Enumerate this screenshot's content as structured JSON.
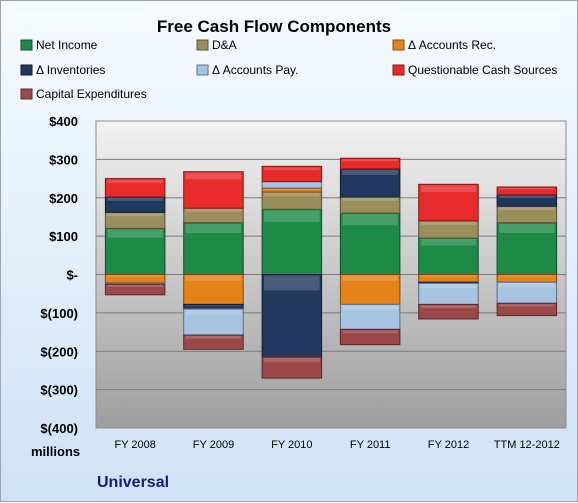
{
  "chart_data": {
    "type": "bar",
    "stacked": true,
    "title": "Free Cash Flow Components",
    "unit_label": "millions",
    "company": "Universal",
    "categories": [
      "FY 2008",
      "FY 2009",
      "FY 2010",
      "FY 2011",
      "FY 2012",
      "TTM 12-2012"
    ],
    "ylim": [
      -400,
      400
    ],
    "yticks": [
      400,
      300,
      200,
      100,
      0,
      -100,
      -200,
      -300,
      -400
    ],
    "ytick_labels": [
      "$400",
      "$300",
      "$200",
      "$100",
      "$-",
      "$(100)",
      "$(200)",
      "$(300)",
      "$(400)"
    ],
    "grid": true,
    "legend_position": "top",
    "series": [
      {
        "name": "Net Income",
        "color": "#1e8a47",
        "values": [
          120,
          135,
          170,
          160,
          95,
          135
        ]
      },
      {
        "name": "D&A",
        "color": "#9a8f5c",
        "values": [
          42,
          38,
          45,
          42,
          45,
          43
        ]
      },
      {
        "name": "Δ Accounts Rec.",
        "color": "#e58218",
        "values": [
          -22,
          -78,
          10,
          -78,
          -20,
          -20
        ]
      },
      {
        "name": "Δ Inventories",
        "color": "#22375e",
        "values": [
          40,
          -12,
          -215,
          73,
          -3,
          30
        ]
      },
      {
        "name": "Δ Accounts Pay.",
        "color": "#a6c3e2",
        "values": [
          -3,
          -68,
          17,
          -65,
          -55,
          -55
        ]
      },
      {
        "name": "Questionable Cash Sources",
        "color": "#e82a2a",
        "values": [
          48,
          95,
          40,
          28,
          95,
          20
        ]
      },
      {
        "name": "Capital Expenditures",
        "color": "#9c4848",
        "values": [
          -28,
          -37,
          -55,
          -40,
          -38,
          -32
        ]
      }
    ]
  }
}
